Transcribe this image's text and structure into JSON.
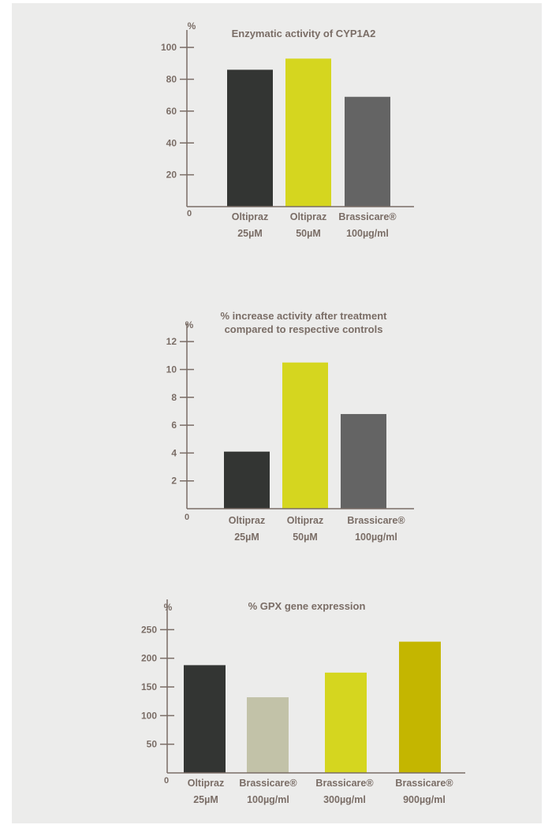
{
  "chart_data": [
    {
      "type": "bar",
      "title": [
        "Enzymatic activity of CYP1A2"
      ],
      "unit_label": "%",
      "zero_label": "0",
      "yticks": [
        20,
        40,
        60,
        80,
        100
      ],
      "ylim": [
        0,
        110
      ],
      "categories": [
        [
          "Oltipraz",
          "25µM"
        ],
        [
          "Oltipraz",
          "50µM"
        ],
        [
          "Brassicare®",
          "100µg/ml"
        ]
      ],
      "values": [
        86,
        93,
        69
      ],
      "colors": [
        "#333533",
        "#d5d61f",
        "#646464"
      ]
    },
    {
      "type": "bar",
      "title": [
        "% increase activity after treatment",
        "compared to respective controls"
      ],
      "unit_label": "%",
      "zero_label": "0",
      "yticks": [
        2,
        4,
        6,
        8,
        10,
        12
      ],
      "ylim": [
        0,
        13.2
      ],
      "categories": [
        [
          "Oltipraz",
          "25µM"
        ],
        [
          "Oltipraz",
          "50µM"
        ],
        [
          "Brassicare®",
          "100µg/ml"
        ]
      ],
      "values": [
        4.1,
        10.5,
        6.8
      ],
      "colors": [
        "#333533",
        "#d5d61f",
        "#646464"
      ]
    },
    {
      "type": "bar",
      "title": [
        "% GPX gene expression"
      ],
      "unit_label": "%",
      "zero_label": "0",
      "yticks": [
        50,
        100,
        150,
        200,
        250
      ],
      "ylim": [
        0,
        300
      ],
      "categories": [
        [
          "Oltipraz",
          "25µM"
        ],
        [
          "Brassicare®",
          "100µg/ml"
        ],
        [
          "Brassicare®",
          "300µg/ml"
        ],
        [
          "Brassicare®",
          "900µg/ml"
        ]
      ],
      "values": [
        188,
        132,
        175,
        229
      ],
      "colors": [
        "#333533",
        "#c2c2a8",
        "#d5d61f",
        "#c4b600"
      ]
    }
  ]
}
